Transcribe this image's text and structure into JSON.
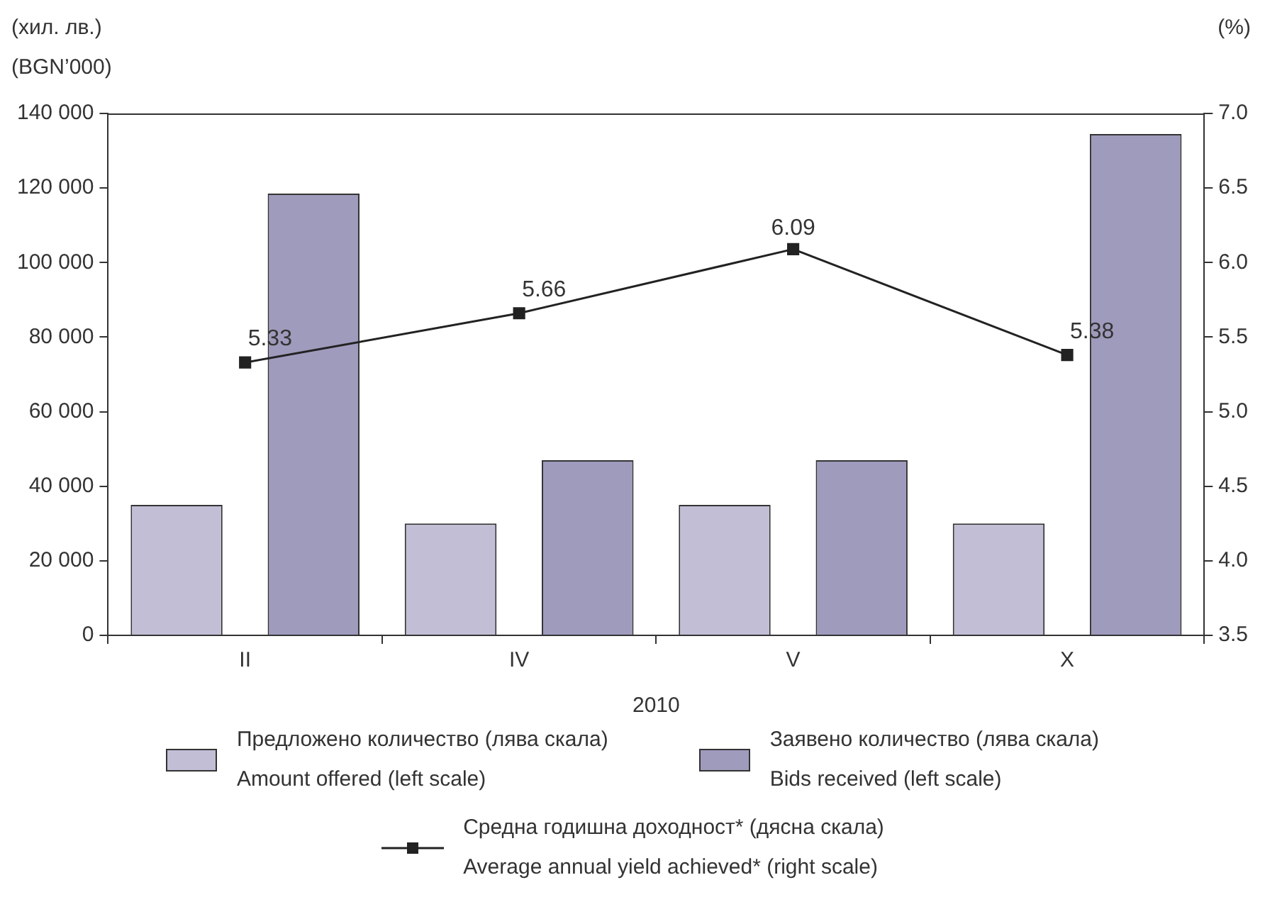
{
  "chart_data": {
    "type": "bar",
    "xlabel": "2010",
    "ylabel": "(хил. лв.)\n(BGN’000)",
    "y2label": "(%)",
    "categories": [
      "II",
      "IV",
      "V",
      "X"
    ],
    "series": [
      {
        "name": "Предложено количество (лява скала)\nAmount offered (left scale)",
        "color": "#c2bed6",
        "values": [
          35000,
          30000,
          35000,
          30000
        ]
      },
      {
        "name": "Заявено количество (лява скала)\nBids received (left scale)",
        "color": "#9f9bbd",
        "values": [
          118500,
          47000,
          47000,
          134500
        ]
      },
      {
        "type": "line",
        "axis": "y2",
        "name": "Средна годишна доходност* (дясна скала)\nAverage annual yield achieved* (right scale)",
        "color": "#222222",
        "marker": "square",
        "values": [
          5.33,
          5.66,
          6.09,
          5.38
        ],
        "value_labels": [
          "5.33",
          "5.66",
          "6.09",
          "5.38"
        ]
      }
    ],
    "ylim": [
      0,
      140000
    ],
    "yticks": [
      0,
      {
        "value": 20000,
        "label": "20 000"
      },
      {
        "value": 40000,
        "label": "40 000"
      },
      {
        "value": 60000,
        "label": "60 000"
      },
      {
        "value": 80000,
        "label": "80 000"
      },
      {
        "value": 100000,
        "label": "100 000"
      },
      {
        "value": 120000,
        "label": "120 000"
      },
      {
        "value": 140000,
        "label": "140 000"
      }
    ],
    "y2lim": [
      3.5,
      7.0
    ],
    "y2ticks": [
      3.5,
      {
        "value": 4,
        "label": "4.0"
      },
      4.5,
      {
        "value": 5,
        "label": "5.0"
      },
      5.5,
      {
        "value": 6,
        "label": "6.0"
      },
      6.5,
      {
        "value": 7,
        "label": "7.0"
      }
    ],
    "grid": false,
    "legend": "bottom"
  }
}
